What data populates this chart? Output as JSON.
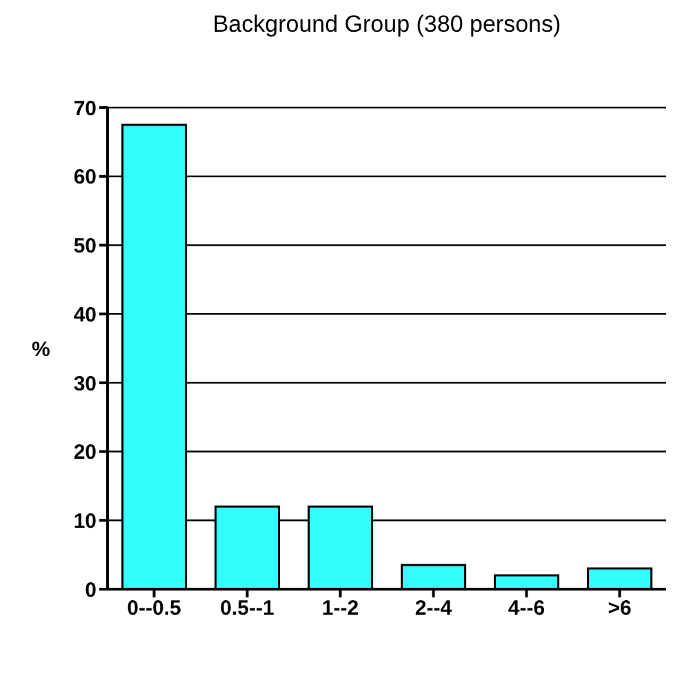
{
  "chart_data": {
    "type": "bar",
    "title": "Background Group  (380 persons)",
    "ylabel": "%",
    "categories": [
      "0--0.5",
      "0.5--1",
      "1--2",
      "2--4",
      "4--6",
      ">6"
    ],
    "values": [
      67.5,
      12,
      12,
      3.5,
      2,
      3
    ],
    "color": "#33ffff",
    "ylim": [
      0,
      70
    ],
    "yticks": [
      0,
      10,
      20,
      30,
      40,
      50,
      60,
      70
    ],
    "grid": "y"
  }
}
